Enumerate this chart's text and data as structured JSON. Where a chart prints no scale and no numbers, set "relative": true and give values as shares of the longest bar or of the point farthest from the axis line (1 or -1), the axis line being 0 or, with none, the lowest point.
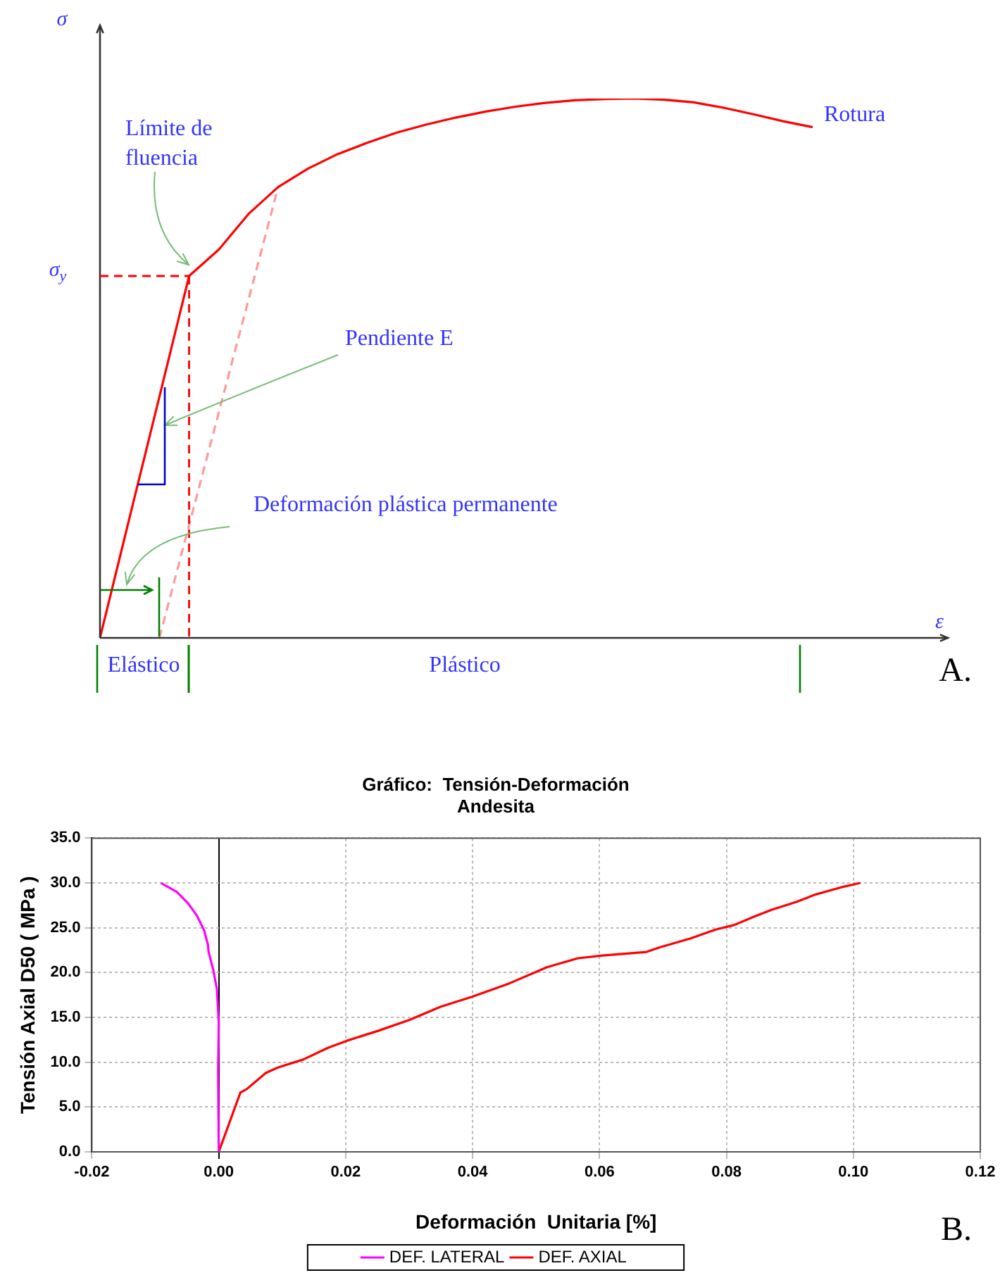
{
  "chart_data": [
    {
      "type": "line",
      "relative": true,
      "xlabel": "ε",
      "ylabel": "σ",
      "categories": [
        null,
        null,
        null,
        null,
        null,
        null,
        null,
        null,
        null,
        null,
        null,
        null,
        null,
        null,
        null,
        null,
        null,
        null,
        null,
        null,
        null,
        null,
        null,
        null,
        null
      ],
      "series": [
        {
          "color": "#ff0000",
          "values": [
            0,
            0.224,
            0.447,
            0.671,
            0.72,
            0.786,
            0.836,
            0.87,
            0.897,
            0.918,
            0.937,
            0.952,
            0.965,
            0.976,
            0.985,
            0.992,
            0.997,
            0.999,
            1.0,
            0.998,
            0.993,
            0.983,
            0.971,
            0.958,
            0.947
          ]
        },
        {
          "color": "#ff9999",
          "line_style": "dashed",
          "values": [
            null,
            null,
            0,
            0.209,
            0.418,
            0.627,
            0.836,
            null,
            null,
            null,
            null,
            null,
            null,
            null,
            null,
            null,
            null,
            null,
            null,
            null,
            null,
            null,
            null,
            null,
            null
          ]
        }
      ],
      "ref_lines": [
        {
          "axis": "y",
          "value": 0.671,
          "label": "σ$_{y}$",
          "color": "#ff0000",
          "line_style": "dashed"
        }
      ],
      "annotations": [
        "Límite de fluencia",
        "Pendiente E",
        "Deformación plástica permanente",
        "Rotura",
        "Elástico",
        "Plástico",
        "A."
      ]
    },
    {
      "type": "line",
      "title": "Gráfico:  Tensión-Deformación",
      "subtitle": "Andesita",
      "xlabel": "Deformación  Unitaria [%]",
      "ylabel": "Tensión Axial D50 ( MPa )",
      "xlim": [
        -0.02,
        0.12
      ],
      "xticks": [
        {
          "value": -0.02,
          "label": "-0.02"
        },
        {
          "value": 0,
          "label": "0.00"
        },
        {
          "value": 0.02,
          "label": "0.02"
        },
        {
          "value": 0.04,
          "label": "0.04"
        },
        {
          "value": 0.06,
          "label": "0.06"
        },
        {
          "value": 0.08,
          "label": "0.08"
        },
        {
          "value": 0.1,
          "label": "0.10"
        },
        {
          "value": 0.12,
          "label": "0.12"
        }
      ],
      "ylim": [
        0,
        35
      ],
      "yticks": [
        {
          "value": 0,
          "label": "0.0"
        },
        {
          "value": 5,
          "label": "5.0"
        },
        {
          "value": 10,
          "label": "10.0"
        },
        {
          "value": 15,
          "label": "15.0"
        },
        {
          "value": 20,
          "label": "20.0"
        },
        {
          "value": 25,
          "label": "25.0"
        },
        {
          "value": 30,
          "label": "30.0"
        },
        {
          "value": 35,
          "label": "35.0"
        }
      ],
      "grid": true,
      "legend": "bottom",
      "series": [
        {
          "name": "DEF. LATERAL",
          "color": "#ff00ff",
          "x": [
            0,
            -0.0001,
            0,
            -0.0003,
            -0.0009,
            -0.0016,
            -0.0017,
            -0.0023,
            -0.0034,
            -0.0048,
            -0.0066,
            -0.0091
          ],
          "values": [
            0,
            8.9,
            14.4,
            18.2,
            20.4,
            22.3,
            23.1,
            24.7,
            26.3,
            27.7,
            29.0,
            30.0
          ]
        },
        {
          "name": "DEF. AXIAL",
          "color": "#ff0000",
          "x": [
            0,
            0.0034,
            0.0044,
            0.0074,
            0.0093,
            0.0133,
            0.0172,
            0.0202,
            0.0251,
            0.03,
            0.035,
            0.0399,
            0.0458,
            0.0517,
            0.0566,
            0.0605,
            0.0674,
            0.0694,
            0.0743,
            0.0783,
            0.0812,
            0.0842,
            0.0871,
            0.0911,
            0.094,
            0.098,
            0.1011
          ],
          "values": [
            0,
            6.6,
            7.0,
            8.8,
            9.4,
            10.3,
            11.6,
            12.4,
            13.5,
            14.7,
            16.2,
            17.3,
            18.8,
            20.6,
            21.6,
            21.9,
            22.3,
            22.8,
            23.8,
            24.8,
            25.3,
            26.2,
            27.0,
            27.9,
            28.7,
            29.5,
            30.0
          ]
        }
      ],
      "annotations": [
        "B."
      ]
    }
  ]
}
